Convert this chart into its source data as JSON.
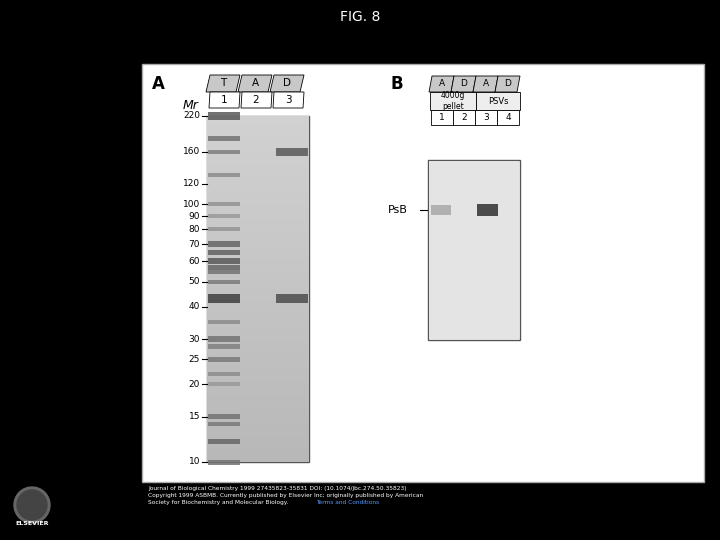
{
  "title": "FIG. 8",
  "background_color": "#000000",
  "figure_bg": "#ffffff",
  "panel_a_label": "A",
  "panel_b_label": "B",
  "mr_label": "Mr",
  "mr_ticks": [
    220,
    160,
    120,
    100,
    90,
    80,
    70,
    60,
    50,
    40,
    30,
    25,
    20,
    15,
    10
  ],
  "panel_a_col_labels_top": [
    "T",
    "A",
    "D"
  ],
  "panel_a_col_labels_bottom": [
    "1",
    "2",
    "3"
  ],
  "panel_b_header_top": [
    "A",
    "D",
    "A",
    "D"
  ],
  "panel_b_header_group1": "4000g\npellet",
  "panel_b_header_group2": "PSVs",
  "panel_b_col_labels": [
    "1",
    "2",
    "3",
    "4"
  ],
  "psb_label": "PsB",
  "footer_line1": "Journal of Biological Chemistry 1999 27435823-35831 DOI: (10.1074/jbc.274.50.35823)",
  "footer_line2": "Copyright 1999 ASBMB. Currently published by Elsevier Inc; originally published by American",
  "footer_line3": "Society for Biochemistry and Molecular Biology.",
  "footer_link": "Terms and Conditions"
}
